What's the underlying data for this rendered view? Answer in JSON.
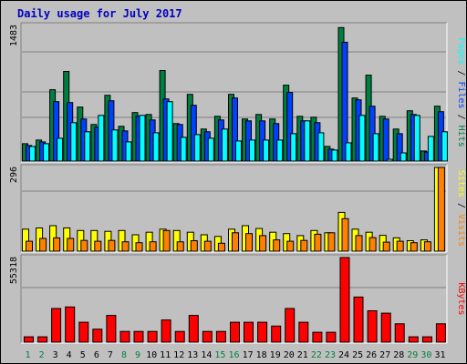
{
  "title": "Daily usage for July 2017",
  "colors": {
    "hits": "#008040",
    "files": "#0040ff",
    "pages": "#00ffff",
    "visits": "#ff8000",
    "sites": "#ffff00",
    "kbytes": "#ff0000",
    "title": "#0000c0",
    "weekend_day": "#008040",
    "weekday": "#000000"
  },
  "chart_data": [
    {
      "type": "bar",
      "panel": "hits_files_pages",
      "categories": [
        "1",
        "2",
        "3",
        "4",
        "5",
        "6",
        "7",
        "8",
        "9",
        "10",
        "11",
        "12",
        "13",
        "14",
        "15",
        "16",
        "17",
        "18",
        "19",
        "20",
        "21",
        "22",
        "23",
        "24",
        "25",
        "26",
        "27",
        "28",
        "29",
        "30",
        "31"
      ],
      "weekend_days": [
        "1",
        "2",
        "8",
        "9",
        "15",
        "16",
        "22",
        "23",
        "29",
        "30"
      ],
      "ymax_label": "1483",
      "ylim": [
        0,
        1483
      ],
      "series": [
        {
          "name": "Hits",
          "values": [
            190,
            230,
            780,
            980,
            590,
            400,
            720,
            380,
            530,
            510,
            990,
            410,
            730,
            350,
            490,
            730,
            460,
            510,
            460,
            830,
            490,
            480,
            160,
            1460,
            690,
            940,
            490,
            350,
            550,
            110,
            600
          ]
        },
        {
          "name": "Files",
          "values": [
            170,
            210,
            650,
            640,
            460,
            370,
            660,
            330,
            490,
            450,
            680,
            400,
            610,
            320,
            450,
            690,
            440,
            440,
            410,
            750,
            440,
            420,
            130,
            1300,
            670,
            600,
            460,
            300,
            510,
            100,
            540
          ]
        },
        {
          "name": "Pages",
          "values": [
            160,
            190,
            250,
            420,
            320,
            500,
            340,
            210,
            500,
            310,
            650,
            260,
            290,
            250,
            350,
            220,
            230,
            230,
            230,
            300,
            440,
            310,
            120,
            200,
            500,
            300,
            20,
            90,
            500,
            270,
            320
          ]
        }
      ],
      "legend": [
        "Pages",
        "Files",
        "Hits"
      ]
    },
    {
      "type": "bar",
      "panel": "sites_visits",
      "categories": [
        "1",
        "2",
        "3",
        "4",
        "5",
        "6",
        "7",
        "8",
        "9",
        "10",
        "11",
        "12",
        "13",
        "14",
        "15",
        "16",
        "17",
        "18",
        "19",
        "20",
        "21",
        "22",
        "23",
        "24",
        "25",
        "26",
        "27",
        "28",
        "29",
        "30",
        "31"
      ],
      "ymax_label": "296",
      "ylim": [
        0,
        296
      ],
      "series": [
        {
          "name": "Sites",
          "values": [
            78,
            82,
            90,
            82,
            73,
            73,
            70,
            73,
            58,
            67,
            78,
            73,
            67,
            58,
            52,
            78,
            90,
            80,
            67,
            62,
            55,
            73,
            65,
            137,
            78,
            67,
            56,
            47,
            37,
            40,
            296
          ]
        },
        {
          "name": "Visits",
          "values": [
            35,
            45,
            47,
            45,
            38,
            35,
            38,
            33,
            30,
            33,
            73,
            33,
            37,
            35,
            28,
            65,
            62,
            55,
            40,
            35,
            38,
            60,
            65,
            115,
            55,
            48,
            32,
            35,
            30,
            33,
            296
          ]
        }
      ],
      "legend": [
        "Sites",
        "Visits"
      ]
    },
    {
      "type": "bar",
      "panel": "kbytes",
      "categories": [
        "1",
        "2",
        "3",
        "4",
        "5",
        "6",
        "7",
        "8",
        "9",
        "10",
        "11",
        "12",
        "13",
        "14",
        "15",
        "16",
        "17",
        "18",
        "19",
        "20",
        "21",
        "22",
        "23",
        "24",
        "25",
        "26",
        "27",
        "28",
        "29",
        "30",
        "31"
      ],
      "ymax_label": "55318",
      "ylim": [
        0,
        55318
      ],
      "series": [
        {
          "name": "KBytes",
          "values": [
            3500,
            3500,
            22000,
            23000,
            13000,
            8500,
            17500,
            7000,
            7000,
            7000,
            14500,
            7000,
            17500,
            7000,
            7000,
            13000,
            13000,
            13000,
            10500,
            22000,
            13000,
            6500,
            6500,
            55318,
            29500,
            20500,
            19000,
            12000,
            3500,
            3500,
            12000
          ]
        }
      ],
      "legend": [
        "KBytes"
      ]
    }
  ]
}
